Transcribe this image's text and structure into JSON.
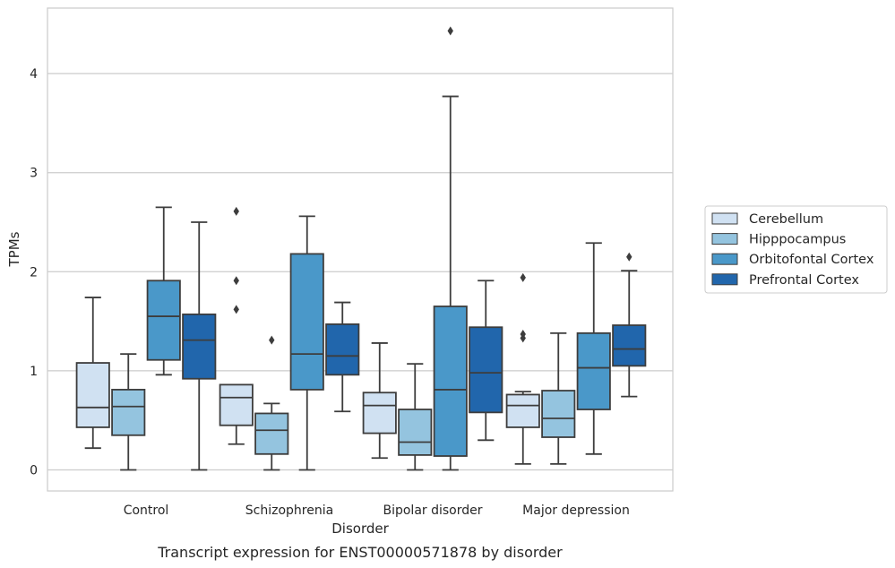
{
  "chart_data": {
    "type": "box",
    "caption": "Transcript expression for ENST00000571878 by disorder",
    "xlabel": "Disorder",
    "ylabel": "TPMs",
    "ylim": [
      -0.22,
      4.65
    ],
    "yticks": [
      0,
      1,
      2,
      3,
      4
    ],
    "grid": "horizontal",
    "legend_position": "right",
    "categories": [
      "Control",
      "Schizophrenia",
      "Bipolar disorder",
      "Major depression"
    ],
    "series": [
      {
        "name": "Cerebellum",
        "color": "#d0e1f2",
        "boxes": [
          {
            "whislo": 0.22,
            "q1": 0.43,
            "med": 0.63,
            "q3": 1.08,
            "whishi": 1.74,
            "fliers": []
          },
          {
            "whislo": 0.26,
            "q1": 0.45,
            "med": 0.73,
            "q3": 0.86,
            "whishi": 0.86,
            "fliers": [
              1.62,
              1.91,
              2.61
            ]
          },
          {
            "whislo": 0.12,
            "q1": 0.37,
            "med": 0.65,
            "q3": 0.78,
            "whishi": 1.28,
            "fliers": []
          },
          {
            "whislo": 0.06,
            "q1": 0.43,
            "med": 0.65,
            "q3": 0.76,
            "whishi": 0.79,
            "fliers": [
              1.33,
              1.37,
              1.94
            ]
          }
        ]
      },
      {
        "name": "Hipppocampus",
        "color": "#94c4df",
        "boxes": [
          {
            "whislo": 0.0,
            "q1": 0.35,
            "med": 0.64,
            "q3": 0.81,
            "whishi": 1.17,
            "fliers": []
          },
          {
            "whislo": 0.0,
            "q1": 0.16,
            "med": 0.4,
            "q3": 0.57,
            "whishi": 0.67,
            "fliers": [
              1.31
            ]
          },
          {
            "whislo": 0.0,
            "q1": 0.15,
            "med": 0.28,
            "q3": 0.61,
            "whishi": 1.07,
            "fliers": []
          },
          {
            "whislo": 0.06,
            "q1": 0.33,
            "med": 0.52,
            "q3": 0.8,
            "whishi": 1.38,
            "fliers": []
          }
        ]
      },
      {
        "name": "Orbitofontal Cortex",
        "color": "#4a98c9",
        "boxes": [
          {
            "whislo": 0.96,
            "q1": 1.11,
            "med": 1.55,
            "q3": 1.91,
            "whishi": 2.65,
            "fliers": []
          },
          {
            "whislo": 0.0,
            "q1": 0.81,
            "med": 1.17,
            "q3": 2.18,
            "whishi": 2.56,
            "fliers": []
          },
          {
            "whislo": 0.0,
            "q1": 0.14,
            "med": 0.81,
            "q3": 1.65,
            "whishi": 3.77,
            "fliers": [
              4.43
            ]
          },
          {
            "whislo": 0.16,
            "q1": 0.61,
            "med": 1.03,
            "q3": 1.38,
            "whishi": 2.29,
            "fliers": []
          }
        ]
      },
      {
        "name": "Prefrontal Cortex",
        "color": "#2166ac",
        "boxes": [
          {
            "whislo": 0.0,
            "q1": 0.92,
            "med": 1.31,
            "q3": 1.57,
            "whishi": 2.5,
            "fliers": []
          },
          {
            "whislo": 0.59,
            "q1": 0.96,
            "med": 1.15,
            "q3": 1.47,
            "whishi": 1.69,
            "fliers": []
          },
          {
            "whislo": 0.3,
            "q1": 0.58,
            "med": 0.98,
            "q3": 1.44,
            "whishi": 1.91,
            "fliers": []
          },
          {
            "whislo": 0.74,
            "q1": 1.05,
            "med": 1.22,
            "q3": 1.46,
            "whishi": 2.01,
            "fliers": [
              2.15
            ]
          }
        ]
      }
    ]
  }
}
